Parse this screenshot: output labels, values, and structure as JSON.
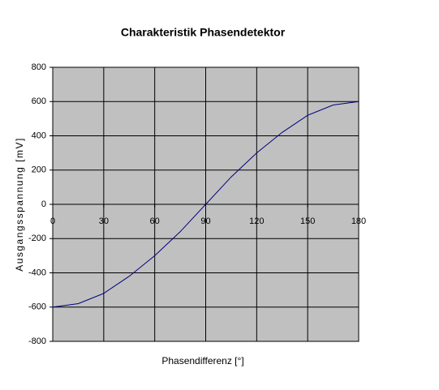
{
  "chart_data": {
    "type": "line",
    "title": "Charakteristik Phasendetektor",
    "x_label": "Phasendifferenz [°]",
    "y_label": "Ausgangsspannung [mV]",
    "x": [
      0,
      15,
      30,
      45,
      60,
      75,
      90,
      105,
      120,
      135,
      150,
      165,
      180
    ],
    "series": [
      {
        "name": "Ausgangsspannung",
        "color": "#000080",
        "values": [
          -600,
          -580,
          -520,
          -420,
          -300,
          -160,
          0,
          160,
          300,
          420,
          520,
          580,
          600
        ]
      }
    ],
    "xlim": [
      0,
      180
    ],
    "xticks": [
      0,
      30,
      60,
      90,
      120,
      150,
      180
    ],
    "ylim": [
      -800,
      800
    ],
    "yticks": [
      -800,
      -600,
      -400,
      -200,
      0,
      200,
      400,
      600,
      800
    ],
    "grid": true,
    "plot_background": "#c0c0c0"
  }
}
